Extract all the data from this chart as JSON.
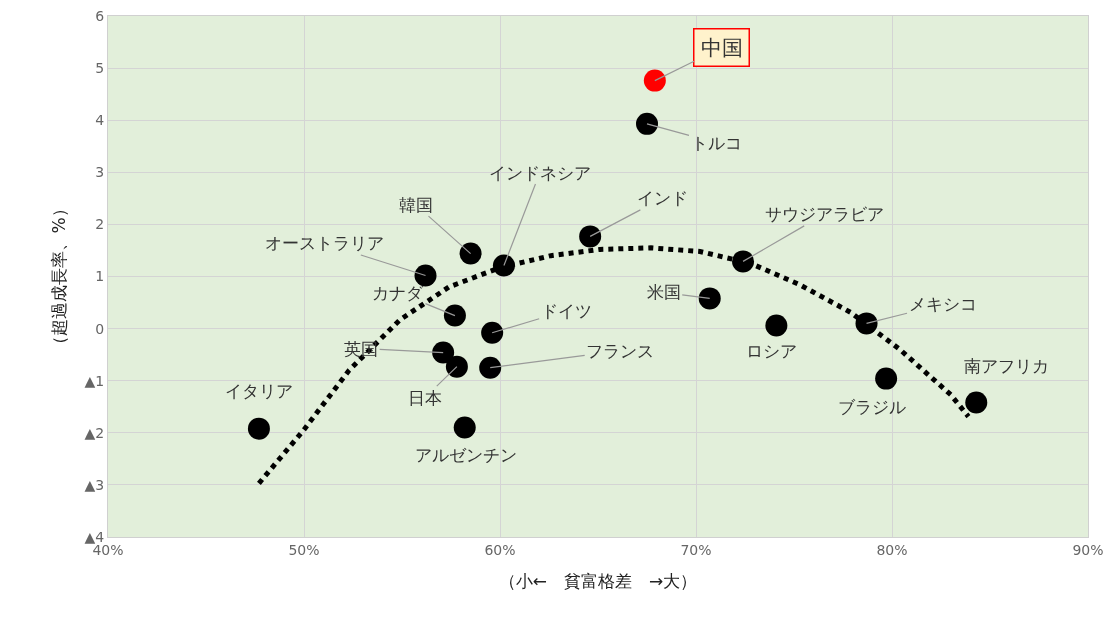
{
  "chart_data": {
    "type": "scatter",
    "xlabel": "（小←　貧富格差　→大）",
    "ylabel": "（超過成長率、%）",
    "xlim": [
      40,
      90
    ],
    "xticks": [
      {
        "value": 40,
        "label": "40%"
      },
      {
        "value": 50,
        "label": "50%"
      },
      {
        "value": 60,
        "label": "60%"
      },
      {
        "value": 70,
        "label": "70%"
      },
      {
        "value": 80,
        "label": "80%"
      },
      {
        "value": 90,
        "label": "90%"
      }
    ],
    "ylim": [
      -4,
      6
    ],
    "yticks": [
      {
        "value": -4,
        "label": "▲4"
      },
      {
        "value": -3,
        "label": "▲3"
      },
      {
        "value": -2,
        "label": "▲2"
      },
      {
        "value": -1,
        "label": "▲1"
      },
      0,
      1,
      2,
      3,
      4,
      5,
      6
    ],
    "grid": true,
    "series": [
      {
        "marker": "circle",
        "x": [
          67.9,
          67.5,
          64.6,
          72.4,
          60.2,
          58.5,
          56.2,
          57.7,
          59.6,
          70.7,
          74.1,
          78.7,
          57.1,
          57.8,
          59.5,
          79.7,
          84.3,
          47.7,
          58.2
        ],
        "values": [
          4.76,
          3.93,
          1.77,
          1.29,
          1.21,
          1.44,
          1.02,
          0.25,
          -0.08,
          0.58,
          0.06,
          0.1,
          -0.46,
          -0.73,
          -0.75,
          -0.96,
          -1.42,
          -1.92,
          -1.9
        ],
        "colors": [
          "#ff0000",
          "#000000",
          "#000000",
          "#000000",
          "#000000",
          "#000000",
          "#000000",
          "#000000",
          "#000000",
          "#000000",
          "#000000",
          "#000000",
          "#000000",
          "#000000",
          "#000000",
          "#000000",
          "#000000",
          "#000000",
          "#000000"
        ]
      },
      {
        "type": "line",
        "line_style": "dotted",
        "color": "#000000",
        "x": [
          47.7,
          50,
          52.3,
          54.9,
          57.4,
          60,
          62.6,
          65.1,
          67.7,
          70.2,
          72.8,
          75.3,
          77.9,
          80.4,
          83,
          83.9
        ],
        "values": [
          -2.97,
          -1.94,
          -0.8,
          0.17,
          0.8,
          1.17,
          1.4,
          1.52,
          1.55,
          1.48,
          1.25,
          0.84,
          0.31,
          -0.4,
          -1.27,
          -1.69
        ]
      }
    ],
    "annotations": [
      {
        "text": "中国",
        "x": 67.9,
        "y": 4.76
      },
      {
        "text": "トルコ",
        "x": 67.5,
        "y": 3.93
      },
      {
        "text": "インド",
        "x": 64.6,
        "y": 1.77
      },
      {
        "text": "サウジアラビア",
        "x": 72.4,
        "y": 1.29
      },
      {
        "text": "インドネシア",
        "x": 60.2,
        "y": 1.21
      },
      {
        "text": "韓国",
        "x": 58.5,
        "y": 1.44
      },
      {
        "text": "オーストラリア",
        "x": 56.2,
        "y": 1.02
      },
      {
        "text": "カナダ",
        "x": 57.7,
        "y": 0.25
      },
      {
        "text": "ドイツ",
        "x": 59.6,
        "y": -0.08
      },
      {
        "text": "米国",
        "x": 70.7,
        "y": 0.58
      },
      {
        "text": "ロシア",
        "x": 74.1,
        "y": 0.06
      },
      {
        "text": "メキシコ",
        "x": 78.7,
        "y": 0.1
      },
      {
        "text": "英国",
        "x": 57.1,
        "y": -0.46
      },
      {
        "text": "日本",
        "x": 57.8,
        "y": -0.73
      },
      {
        "text": "フランス",
        "x": 59.5,
        "y": -0.75
      },
      {
        "text": "ブラジル",
        "x": 79.7,
        "y": -0.96
      },
      {
        "text": "南アフリカ",
        "x": 84.3,
        "y": -1.42
      },
      {
        "text": "イタリア",
        "x": 47.7,
        "y": -1.92
      },
      {
        "text": "アルゼンチン",
        "x": 58.2,
        "y": -1.9
      }
    ]
  }
}
